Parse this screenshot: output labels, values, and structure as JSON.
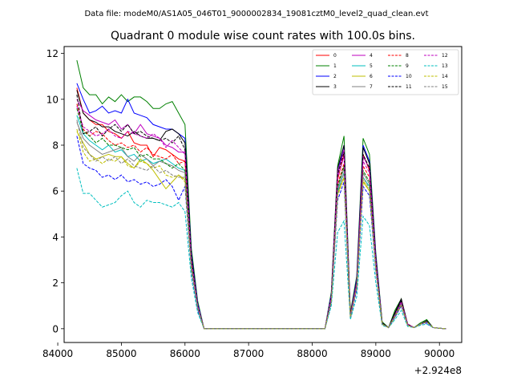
{
  "figure": {
    "suptitle": "Data file: modeM0/AS1A05_046T01_9000002834_19081cztM0_level2_quad_clean.evt"
  },
  "chart_data": {
    "type": "line",
    "title": "Quadrant 0 module wise count rates with 100.0s bins.",
    "xlabel": "",
    "ylabel": "",
    "x_offset_text": "+2.924e8",
    "xlim": [
      84100,
      90350
    ],
    "ylim": [
      -0.6,
      12.3
    ],
    "xticks": [
      84000,
      85000,
      86000,
      87000,
      88000,
      89000,
      90000
    ],
    "xtick_labels": [
      "84000",
      "85000",
      "86000",
      "87000",
      "88000",
      "89000",
      "90000"
    ],
    "yticks": [
      0,
      2,
      4,
      6,
      8,
      10,
      12
    ],
    "ytick_labels": [
      "0",
      "2",
      "4",
      "6",
      "8",
      "10",
      "12"
    ],
    "grid": false,
    "legend_placement": "top-right",
    "legend_columns": 4,
    "x": [
      84300,
      84400,
      84500,
      84600,
      84700,
      84800,
      84900,
      85000,
      85100,
      85200,
      85300,
      85400,
      85500,
      85600,
      85700,
      85800,
      85900,
      86000,
      86100,
      86200,
      86300,
      86400,
      86500,
      86600,
      86700,
      86800,
      86900,
      87000,
      87100,
      87200,
      87300,
      87400,
      87500,
      87600,
      87700,
      87800,
      87900,
      88000,
      88100,
      88200,
      88300,
      88400,
      88500,
      88600,
      88700,
      88800,
      88900,
      89000,
      89100,
      89200,
      89300,
      89400,
      89500,
      89600,
      89700,
      89800,
      89900,
      90000,
      90100
    ],
    "series": [
      {
        "name": "0",
        "color": "#ff0000",
        "dash": "solid",
        "values": [
          10.5,
          9.4,
          9.1,
          8.9,
          8.9,
          8.6,
          8.5,
          8.3,
          8.6,
          8.1,
          8.0,
          8.0,
          7.5,
          7.9,
          7.8,
          7.6,
          7.4,
          7.3,
          3.0,
          1.0,
          0,
          0,
          0,
          0,
          0,
          0,
          0,
          0,
          0,
          0,
          0,
          0,
          0,
          0,
          0,
          0,
          0,
          0,
          0,
          0,
          1.3,
          6.5,
          7.6,
          0.5,
          2.0,
          7.6,
          6.9,
          3.0,
          0.2,
          0.05,
          0.6,
          1.2,
          0.2,
          0.05,
          0.2,
          0.35,
          0.05,
          0.02,
          0
        ]
      },
      {
        "name": "1",
        "color": "#008000",
        "dash": "solid",
        "values": [
          11.7,
          10.5,
          10.2,
          10.2,
          9.8,
          10.1,
          9.9,
          10.2,
          9.9,
          10.1,
          10.1,
          9.9,
          9.6,
          9.6,
          9.8,
          9.9,
          9.4,
          8.9,
          3.5,
          1.2,
          0,
          0,
          0,
          0,
          0,
          0,
          0,
          0,
          0,
          0,
          0,
          0,
          0,
          0,
          0,
          0,
          0,
          0,
          0,
          0,
          1.6,
          7.1,
          8.4,
          0.7,
          2.3,
          8.3,
          7.6,
          3.3,
          0.3,
          0.05,
          0.8,
          1.3,
          0.2,
          0.05,
          0.25,
          0.4,
          0.05,
          0.02,
          0
        ]
      },
      {
        "name": "2",
        "color": "#0000ff",
        "dash": "solid",
        "values": [
          10.7,
          10.0,
          9.4,
          9.5,
          9.7,
          9.4,
          9.5,
          9.4,
          10.0,
          9.4,
          9.3,
          9.2,
          8.9,
          8.8,
          8.7,
          8.7,
          8.5,
          8.3,
          3.3,
          1.1,
          0,
          0,
          0,
          0,
          0,
          0,
          0,
          0,
          0,
          0,
          0,
          0,
          0,
          0,
          0,
          0,
          0,
          0,
          0,
          0,
          1.5,
          6.8,
          8.0,
          0.6,
          2.2,
          8.0,
          7.3,
          3.2,
          0.25,
          0.05,
          0.7,
          1.25,
          0.2,
          0.05,
          0.2,
          0.35,
          0.05,
          0.02,
          0
        ]
      },
      {
        "name": "3",
        "color": "#000000",
        "dash": "solid",
        "values": [
          10.4,
          9.4,
          9.1,
          9.0,
          8.8,
          8.8,
          8.6,
          8.5,
          8.4,
          8.6,
          8.4,
          8.3,
          8.3,
          8.2,
          8.6,
          8.7,
          8.5,
          8.1,
          3.2,
          1.0,
          0,
          0,
          0,
          0,
          0,
          0,
          0,
          0,
          0,
          0,
          0,
          0,
          0,
          0,
          0,
          0,
          0,
          0,
          0,
          0,
          1.4,
          7.0,
          8.0,
          0.6,
          2.1,
          7.9,
          7.2,
          3.1,
          0.25,
          0.05,
          0.7,
          1.3,
          0.2,
          0.05,
          0.2,
          0.35,
          0.05,
          0.02,
          0
        ]
      },
      {
        "name": "4",
        "color": "#bf00bf",
        "dash": "solid",
        "values": [
          10.0,
          9.5,
          9.3,
          9.1,
          9.0,
          8.9,
          9.1,
          8.7,
          8.9,
          8.5,
          8.9,
          8.5,
          8.4,
          8.3,
          8.0,
          7.9,
          7.7,
          7.7,
          3.0,
          1.0,
          0,
          0,
          0,
          0,
          0,
          0,
          0,
          0,
          0,
          0,
          0,
          0,
          0,
          0,
          0,
          0,
          0,
          0,
          0,
          0,
          1.4,
          6.8,
          7.8,
          0.6,
          2.0,
          7.5,
          7.0,
          3.0,
          0.2,
          0.05,
          0.6,
          1.2,
          0.2,
          0.05,
          0.2,
          0.3,
          0.05,
          0.02,
          0
        ]
      },
      {
        "name": "5",
        "color": "#00bfbf",
        "dash": "solid",
        "values": [
          9.3,
          8.5,
          8.2,
          8.0,
          7.8,
          8.0,
          7.7,
          7.8,
          7.5,
          7.6,
          7.3,
          7.4,
          7.2,
          7.3,
          7.4,
          7.2,
          7.0,
          6.9,
          2.8,
          0.9,
          0,
          0,
          0,
          0,
          0,
          0,
          0,
          0,
          0,
          0,
          0,
          0,
          0,
          0,
          0,
          0,
          0,
          0,
          0,
          0,
          1.2,
          6.0,
          6.8,
          0.5,
          1.8,
          6.6,
          6.2,
          2.7,
          0.2,
          0.05,
          0.6,
          1.1,
          0.15,
          0.05,
          0.2,
          0.3,
          0.05,
          0.02,
          0
        ]
      },
      {
        "name": "6",
        "color": "#bfbf00",
        "dash": "solid",
        "values": [
          8.6,
          8.1,
          7.6,
          7.4,
          7.5,
          7.6,
          7.5,
          7.5,
          7.2,
          7.0,
          7.4,
          7.2,
          6.9,
          6.5,
          6.1,
          6.4,
          6.7,
          6.5,
          2.7,
          0.9,
          0,
          0,
          0,
          0,
          0,
          0,
          0,
          0,
          0,
          0,
          0,
          0,
          0,
          0,
          0,
          0,
          0,
          0,
          0,
          0,
          1.2,
          5.9,
          6.6,
          0.5,
          1.8,
          6.4,
          6.0,
          2.6,
          0.2,
          0.05,
          0.5,
          1.0,
          0.15,
          0.05,
          0.2,
          0.3,
          0.05,
          0.02,
          0
        ]
      },
      {
        "name": "7",
        "color": "#808080",
        "dash": "solid",
        "values": [
          9.0,
          8.3,
          8.0,
          7.8,
          7.6,
          7.7,
          7.8,
          7.9,
          7.5,
          7.3,
          7.6,
          7.4,
          7.1,
          7.3,
          7.2,
          7.1,
          6.9,
          6.8,
          2.8,
          0.9,
          0,
          0,
          0,
          0,
          0,
          0,
          0,
          0,
          0,
          0,
          0,
          0,
          0,
          0,
          0,
          0,
          0,
          0,
          0,
          0,
          1.3,
          6.1,
          7.0,
          0.5,
          1.9,
          6.8,
          6.3,
          2.7,
          0.2,
          0.05,
          0.55,
          1.05,
          0.15,
          0.05,
          0.2,
          0.3,
          0.05,
          0.02,
          0
        ]
      },
      {
        "name": "8",
        "color": "#ff0000",
        "dash": "dashed",
        "values": [
          9.8,
          8.7,
          8.4,
          8.6,
          8.5,
          8.2,
          8.0,
          8.1,
          7.9,
          8.0,
          7.7,
          7.9,
          7.6,
          7.5,
          7.4,
          7.6,
          7.2,
          7.3,
          2.9,
          1.0,
          0,
          0,
          0,
          0,
          0,
          0,
          0,
          0,
          0,
          0,
          0,
          0,
          0,
          0,
          0,
          0,
          0,
          0,
          0,
          0,
          1.3,
          6.3,
          7.2,
          0.5,
          1.9,
          7.1,
          6.6,
          2.8,
          0.2,
          0.05,
          0.6,
          1.15,
          0.2,
          0.05,
          0.2,
          0.3,
          0.05,
          0.02,
          0
        ]
      },
      {
        "name": "9",
        "color": "#008000",
        "dash": "dashed",
        "values": [
          9.6,
          8.6,
          8.4,
          8.1,
          8.3,
          8.0,
          8.0,
          7.9,
          7.8,
          7.9,
          7.5,
          7.6,
          7.4,
          7.4,
          7.2,
          7.0,
          7.2,
          6.9,
          2.8,
          0.9,
          0,
          0,
          0,
          0,
          0,
          0,
          0,
          0,
          0,
          0,
          0,
          0,
          0,
          0,
          0,
          0,
          0,
          0,
          0,
          0,
          1.3,
          6.2,
          7.1,
          0.5,
          1.9,
          6.9,
          6.4,
          2.8,
          0.2,
          0.05,
          0.6,
          1.1,
          0.15,
          0.05,
          0.2,
          0.3,
          0.05,
          0.02,
          0
        ]
      },
      {
        "name": "10",
        "color": "#0000ff",
        "dash": "dashed",
        "values": [
          8.4,
          7.2,
          7.0,
          6.9,
          6.6,
          6.7,
          6.5,
          6.7,
          6.4,
          6.5,
          6.3,
          6.4,
          6.2,
          6.3,
          6.5,
          6.2,
          5.6,
          6.2,
          2.5,
          0.8,
          0,
          0,
          0,
          0,
          0,
          0,
          0,
          0,
          0,
          0,
          0,
          0,
          0,
          0,
          0,
          0,
          0,
          0,
          0,
          0,
          1.1,
          5.6,
          6.4,
          0.45,
          1.7,
          6.2,
          5.8,
          2.5,
          0.2,
          0.05,
          0.5,
          1.0,
          0.15,
          0.05,
          0.2,
          0.25,
          0.05,
          0.02,
          0
        ]
      },
      {
        "name": "11",
        "color": "#000000",
        "dash": "dashed",
        "values": [
          10.2,
          8.5,
          8.6,
          8.8,
          8.4,
          8.7,
          8.9,
          8.6,
          8.9,
          8.5,
          8.6,
          8.4,
          8.3,
          8.2,
          8.3,
          8.1,
          8.4,
          7.8,
          3.1,
          1.0,
          0,
          0,
          0,
          0,
          0,
          0,
          0,
          0,
          0,
          0,
          0,
          0,
          0,
          0,
          0,
          0,
          0,
          0,
          0,
          0,
          1.4,
          6.7,
          7.7,
          0.6,
          2.0,
          7.6,
          7.0,
          3.0,
          0.2,
          0.05,
          0.65,
          1.2,
          0.2,
          0.05,
          0.2,
          0.35,
          0.05,
          0.02,
          0
        ]
      },
      {
        "name": "12",
        "color": "#bf00bf",
        "dash": "dashed",
        "values": [
          9.7,
          8.8,
          8.6,
          8.4,
          8.5,
          8.7,
          8.4,
          8.3,
          8.6,
          8.5,
          8.4,
          8.3,
          8.5,
          8.3,
          7.9,
          8.2,
          7.9,
          7.6,
          3.0,
          1.0,
          0,
          0,
          0,
          0,
          0,
          0,
          0,
          0,
          0,
          0,
          0,
          0,
          0,
          0,
          0,
          0,
          0,
          0,
          0,
          0,
          1.4,
          6.6,
          7.5,
          0.55,
          2.0,
          7.3,
          6.8,
          2.9,
          0.2,
          0.05,
          0.6,
          1.15,
          0.2,
          0.05,
          0.2,
          0.3,
          0.05,
          0.02,
          0
        ]
      },
      {
        "name": "13",
        "color": "#00bfbf",
        "dash": "dashed",
        "values": [
          7.0,
          5.9,
          5.9,
          5.6,
          5.3,
          5.4,
          5.5,
          5.8,
          6.0,
          5.5,
          5.3,
          5.6,
          5.5,
          5.5,
          5.4,
          5.3,
          5.5,
          5.1,
          2.2,
          0.7,
          0,
          0,
          0,
          0,
          0,
          0,
          0,
          0,
          0,
          0,
          0,
          0,
          0,
          0,
          0,
          0,
          0,
          0,
          0,
          0,
          1.0,
          4.2,
          4.7,
          0.4,
          1.4,
          4.9,
          4.5,
          2.0,
          0.15,
          0.05,
          0.4,
          0.8,
          0.1,
          0.05,
          0.15,
          0.2,
          0.05,
          0.02,
          0
        ]
      },
      {
        "name": "14",
        "color": "#bfbf00",
        "dash": "dashed",
        "values": [
          8.7,
          7.7,
          7.3,
          7.4,
          7.2,
          7.4,
          7.3,
          7.5,
          7.1,
          7.0,
          7.3,
          7.2,
          7.0,
          7.1,
          6.7,
          6.6,
          6.7,
          6.4,
          2.6,
          0.9,
          0,
          0,
          0,
          0,
          0,
          0,
          0,
          0,
          0,
          0,
          0,
          0,
          0,
          0,
          0,
          0,
          0,
          0,
          0,
          0,
          1.2,
          5.8,
          6.6,
          0.5,
          1.8,
          6.5,
          6.0,
          2.6,
          0.2,
          0.05,
          0.55,
          1.05,
          0.15,
          0.05,
          0.2,
          0.3,
          0.05,
          0.02,
          0
        ]
      },
      {
        "name": "15",
        "color": "#808080",
        "dash": "dashed",
        "values": [
          9.1,
          7.9,
          7.6,
          7.3,
          7.5,
          7.3,
          7.5,
          7.2,
          7.4,
          7.1,
          7.0,
          6.9,
          7.1,
          6.8,
          6.9,
          6.7,
          6.6,
          6.6,
          2.7,
          0.9,
          0,
          0,
          0,
          0,
          0,
          0,
          0,
          0,
          0,
          0,
          0,
          0,
          0,
          0,
          0,
          0,
          0,
          0,
          0,
          0,
          1.2,
          5.9,
          6.8,
          0.5,
          1.8,
          6.6,
          6.1,
          2.6,
          0.2,
          0.05,
          0.55,
          1.05,
          0.15,
          0.05,
          0.2,
          0.3,
          0.05,
          0.02,
          0
        ]
      }
    ]
  }
}
